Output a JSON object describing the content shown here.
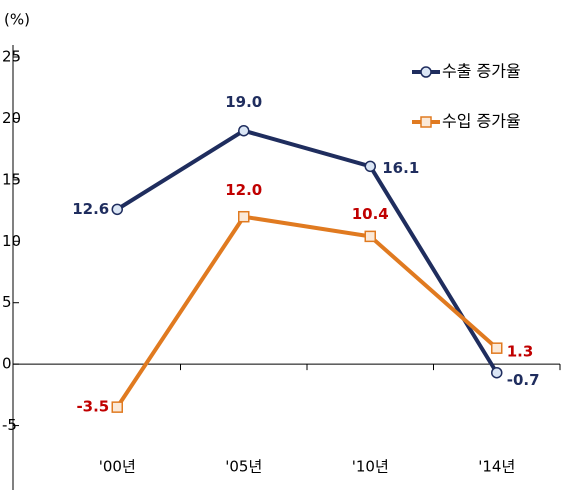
{
  "chart_data": {
    "type": "line",
    "unit_label": "(%)",
    "categories": [
      "'00년",
      "'05년",
      "'10년",
      "'14년"
    ],
    "series": [
      {
        "name": "수출 증가율",
        "color": "#1f2d5e",
        "label_color": "#1f2d5e",
        "marker": "circle",
        "marker_fill": "#dbe6f5",
        "values": [
          12.6,
          19.0,
          16.1,
          -0.7
        ],
        "value_labels": [
          "12.6",
          "19.0",
          "16.1",
          "-0.7"
        ]
      },
      {
        "name": "수입 증가율",
        "color": "#e07a20",
        "label_color": "#c00000",
        "marker": "square",
        "marker_fill": "#fbe9d8",
        "values": [
          -3.5,
          12.0,
          10.4,
          1.3
        ],
        "value_labels": [
          "-3.5",
          "12.0",
          "10.4",
          "1.3"
        ]
      }
    ],
    "ylim": [
      -10,
      25
    ],
    "yticks": [
      -5,
      0,
      5,
      10,
      15,
      20,
      25
    ],
    "legend": "upper right"
  }
}
